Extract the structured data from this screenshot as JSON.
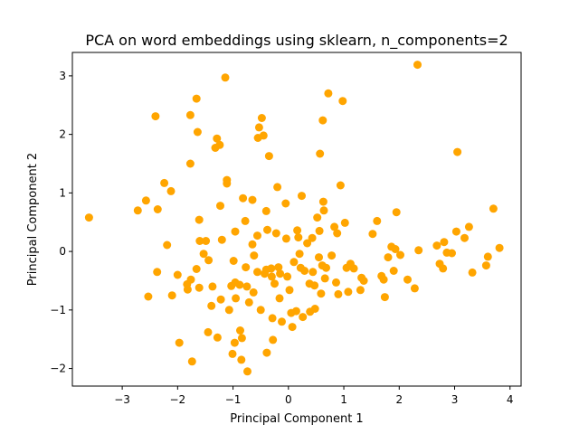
{
  "chart_data": {
    "type": "scatter",
    "title": "PCA on word embeddings using sklearn, n_components=2",
    "xlabel": "Principal Component 1",
    "ylabel": "Principal Component 2",
    "xlim": [
      -3.9,
      4.2
    ],
    "ylim": [
      -2.3,
      3.4
    ],
    "xticks": [
      -3,
      -2,
      -1,
      0,
      1,
      2,
      3,
      4
    ],
    "yticks": [
      -2,
      -1,
      0,
      1,
      2,
      3
    ],
    "xtick_labels": [
      "−3",
      "−2",
      "−1",
      "0",
      "1",
      "2",
      "3",
      "4"
    ],
    "ytick_labels": [
      "−2",
      "−1",
      "0",
      "1",
      "2",
      "3"
    ],
    "grid": false,
    "marker_color": "#ffa500",
    "points": [
      {
        "x": -3.6,
        "y": 0.58
      },
      {
        "x": -2.72,
        "y": 0.7
      },
      {
        "x": -2.57,
        "y": 0.87
      },
      {
        "x": -2.53,
        "y": -0.77
      },
      {
        "x": -2.4,
        "y": 2.31
      },
      {
        "x": -2.36,
        "y": 0.72
      },
      {
        "x": -2.37,
        "y": -0.35
      },
      {
        "x": -2.24,
        "y": 1.17
      },
      {
        "x": -2.19,
        "y": 0.11
      },
      {
        "x": -2.12,
        "y": 1.03
      },
      {
        "x": -2.1,
        "y": -0.75
      },
      {
        "x": -2.0,
        "y": -0.4
      },
      {
        "x": -1.97,
        "y": -1.56
      },
      {
        "x": -1.83,
        "y": -0.56
      },
      {
        "x": -1.82,
        "y": -0.65
      },
      {
        "x": -1.77,
        "y": 2.33
      },
      {
        "x": -1.77,
        "y": 1.5
      },
      {
        "x": -1.76,
        "y": -0.48
      },
      {
        "x": -1.74,
        "y": -1.88
      },
      {
        "x": -1.66,
        "y": 2.61
      },
      {
        "x": -1.64,
        "y": 2.04
      },
      {
        "x": -1.66,
        "y": -0.3
      },
      {
        "x": -1.61,
        "y": 0.54
      },
      {
        "x": -1.6,
        "y": 0.18
      },
      {
        "x": -1.61,
        "y": -0.62
      },
      {
        "x": -1.53,
        "y": -0.04
      },
      {
        "x": -1.49,
        "y": 0.18
      },
      {
        "x": -1.45,
        "y": -1.38
      },
      {
        "x": -1.44,
        "y": -0.15
      },
      {
        "x": -1.39,
        "y": -0.93
      },
      {
        "x": -1.37,
        "y": -0.6
      },
      {
        "x": -1.32,
        "y": 1.77
      },
      {
        "x": -1.29,
        "y": 1.93
      },
      {
        "x": -1.28,
        "y": -1.47
      },
      {
        "x": -1.24,
        "y": 1.82
      },
      {
        "x": -1.23,
        "y": 0.78
      },
      {
        "x": -1.22,
        "y": -0.82
      },
      {
        "x": -1.2,
        "y": 0.2
      },
      {
        "x": -1.14,
        "y": 2.97
      },
      {
        "x": -1.11,
        "y": 1.22
      },
      {
        "x": -1.11,
        "y": 1.16
      },
      {
        "x": -1.07,
        "y": -1.0
      },
      {
        "x": -1.03,
        "y": -0.59
      },
      {
        "x": -1.01,
        "y": -1.75
      },
      {
        "x": -0.99,
        "y": -0.16
      },
      {
        "x": -0.97,
        "y": -1.56
      },
      {
        "x": -0.96,
        "y": -0.53
      },
      {
        "x": -0.96,
        "y": 0.34
      },
      {
        "x": -0.95,
        "y": -0.8
      },
      {
        "x": -0.88,
        "y": -0.57
      },
      {
        "x": -0.87,
        "y": -1.35
      },
      {
        "x": -0.85,
        "y": -1.85
      },
      {
        "x": -0.84,
        "y": -1.48
      },
      {
        "x": -0.82,
        "y": 0.91
      },
      {
        "x": -0.78,
        "y": 0.52
      },
      {
        "x": -0.77,
        "y": -0.27
      },
      {
        "x": -0.75,
        "y": -0.6
      },
      {
        "x": -0.74,
        "y": -2.05
      },
      {
        "x": -0.71,
        "y": -0.87
      },
      {
        "x": -0.65,
        "y": 0.88
      },
      {
        "x": -0.65,
        "y": 0.12
      },
      {
        "x": -0.63,
        "y": -0.7
      },
      {
        "x": -0.62,
        "y": -0.07
      },
      {
        "x": -0.56,
        "y": -0.35
      },
      {
        "x": -0.56,
        "y": 0.27
      },
      {
        "x": -0.55,
        "y": 1.94
      },
      {
        "x": -0.53,
        "y": 2.12
      },
      {
        "x": -0.5,
        "y": -1.0
      },
      {
        "x": -0.48,
        "y": 2.28
      },
      {
        "x": -0.45,
        "y": 1.98
      },
      {
        "x": -0.43,
        "y": -0.38
      },
      {
        "x": -0.4,
        "y": -0.31
      },
      {
        "x": -0.4,
        "y": 0.69
      },
      {
        "x": -0.39,
        "y": -1.73
      },
      {
        "x": -0.38,
        "y": 0.37
      },
      {
        "x": -0.35,
        "y": 1.63
      },
      {
        "x": -0.31,
        "y": -0.29
      },
      {
        "x": -0.3,
        "y": -0.43
      },
      {
        "x": -0.29,
        "y": -1.14
      },
      {
        "x": -0.28,
        "y": -1.51
      },
      {
        "x": -0.25,
        "y": -0.55
      },
      {
        "x": -0.22,
        "y": 0.31
      },
      {
        "x": -0.2,
        "y": 1.1
      },
      {
        "x": -0.18,
        "y": -0.27
      },
      {
        "x": -0.16,
        "y": -0.8
      },
      {
        "x": -0.15,
        "y": -0.38
      },
      {
        "x": -0.12,
        "y": -1.2
      },
      {
        "x": -0.05,
        "y": 0.82
      },
      {
        "x": -0.04,
        "y": 0.22
      },
      {
        "x": -0.02,
        "y": -0.43
      },
      {
        "x": 0.02,
        "y": -0.66
      },
      {
        "x": 0.05,
        "y": -1.05
      },
      {
        "x": 0.07,
        "y": -1.29
      },
      {
        "x": 0.1,
        "y": -0.18
      },
      {
        "x": 0.14,
        "y": -1.02
      },
      {
        "x": 0.16,
        "y": 0.36
      },
      {
        "x": 0.18,
        "y": 0.24
      },
      {
        "x": 0.2,
        "y": -0.04
      },
      {
        "x": 0.22,
        "y": -0.28
      },
      {
        "x": 0.24,
        "y": 0.95
      },
      {
        "x": 0.26,
        "y": -1.12
      },
      {
        "x": 0.29,
        "y": -0.33
      },
      {
        "x": 0.34,
        "y": 0.14
      },
      {
        "x": 0.38,
        "y": -0.55
      },
      {
        "x": 0.39,
        "y": -1.03
      },
      {
        "x": 0.43,
        "y": 0.23
      },
      {
        "x": 0.44,
        "y": -0.35
      },
      {
        "x": 0.47,
        "y": -0.58
      },
      {
        "x": 0.48,
        "y": -0.98
      },
      {
        "x": 0.52,
        "y": 0.58
      },
      {
        "x": 0.55,
        "y": -0.1
      },
      {
        "x": 0.56,
        "y": 0.35
      },
      {
        "x": 0.57,
        "y": 1.67
      },
      {
        "x": 0.59,
        "y": -0.72
      },
      {
        "x": 0.61,
        "y": -0.24
      },
      {
        "x": 0.62,
        "y": 2.24
      },
      {
        "x": 0.63,
        "y": 0.85
      },
      {
        "x": 0.64,
        "y": 0.7
      },
      {
        "x": 0.66,
        "y": -0.46
      },
      {
        "x": 0.68,
        "y": -0.28
      },
      {
        "x": 0.72,
        "y": 2.7
      },
      {
        "x": 0.78,
        "y": -0.07
      },
      {
        "x": 0.83,
        "y": 0.42
      },
      {
        "x": 0.86,
        "y": -0.53
      },
      {
        "x": 0.88,
        "y": 0.31
      },
      {
        "x": 0.9,
        "y": -0.73
      },
      {
        "x": 0.94,
        "y": 1.13
      },
      {
        "x": 0.98,
        "y": 2.57
      },
      {
        "x": 1.02,
        "y": 0.49
      },
      {
        "x": 1.05,
        "y": -0.28
      },
      {
        "x": 1.08,
        "y": -0.69
      },
      {
        "x": 1.12,
        "y": -0.21
      },
      {
        "x": 1.18,
        "y": -0.29
      },
      {
        "x": 1.3,
        "y": -0.66
      },
      {
        "x": 1.32,
        "y": -0.45
      },
      {
        "x": 1.36,
        "y": -0.5
      },
      {
        "x": 1.52,
        "y": 0.3
      },
      {
        "x": 1.6,
        "y": 0.52
      },
      {
        "x": 1.68,
        "y": -0.42
      },
      {
        "x": 1.72,
        "y": -0.48
      },
      {
        "x": 1.74,
        "y": -0.78
      },
      {
        "x": 1.8,
        "y": -0.1
      },
      {
        "x": 1.86,
        "y": 0.08
      },
      {
        "x": 1.9,
        "y": -0.33
      },
      {
        "x": 1.93,
        "y": 0.04
      },
      {
        "x": 1.95,
        "y": 0.67
      },
      {
        "x": 2.02,
        "y": -0.06
      },
      {
        "x": 2.15,
        "y": -0.48
      },
      {
        "x": 2.28,
        "y": -0.63
      },
      {
        "x": 2.35,
        "y": 0.02
      },
      {
        "x": 2.33,
        "y": 3.19
      },
      {
        "x": 2.68,
        "y": 0.1
      },
      {
        "x": 2.73,
        "y": -0.21
      },
      {
        "x": 2.79,
        "y": -0.29
      },
      {
        "x": 2.81,
        "y": 0.16
      },
      {
        "x": 2.86,
        "y": -0.02
      },
      {
        "x": 2.95,
        "y": -0.03
      },
      {
        "x": 3.03,
        "y": 0.34
      },
      {
        "x": 3.05,
        "y": 1.7
      },
      {
        "x": 3.18,
        "y": 0.23
      },
      {
        "x": 3.26,
        "y": 0.42
      },
      {
        "x": 3.32,
        "y": -0.36
      },
      {
        "x": 3.57,
        "y": -0.24
      },
      {
        "x": 3.6,
        "y": -0.09
      },
      {
        "x": 3.7,
        "y": 0.73
      },
      {
        "x": 3.81,
        "y": 0.06
      }
    ]
  }
}
